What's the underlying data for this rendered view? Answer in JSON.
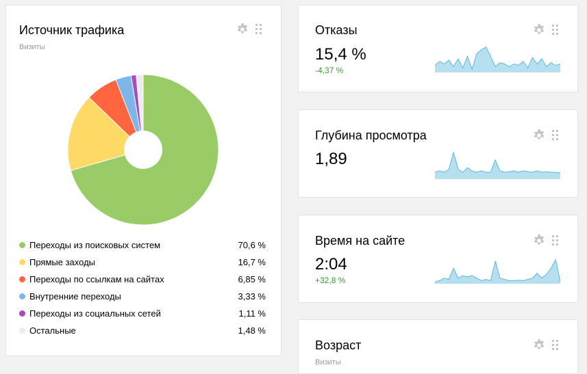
{
  "traffic_card": {
    "title": "Источник трафика",
    "subtitle": "Визиты",
    "settings_icon": "gear-icon",
    "drag_icon": "drag-handle-icon",
    "legend": [
      {
        "label": "Переходы из поисковых систем",
        "value": "70,6 %",
        "color": "#99cc66"
      },
      {
        "label": "Прямые заходы",
        "value": "16,7 %",
        "color": "#ffd966"
      },
      {
        "label": "Переходы по ссылкам на сайтах",
        "value": "6,85 %",
        "color": "#ff6640"
      },
      {
        "label": "Внутренние переходы",
        "value": "3,33 %",
        "color": "#7fb5e8"
      },
      {
        "label": "Переходы из социальных сетей",
        "value": "1,11 %",
        "color": "#a54cc2"
      },
      {
        "label": "Остальные",
        "value": "1,48 %",
        "color": "#ececec"
      }
    ]
  },
  "chart_data": {
    "type": "pie",
    "categories": [
      "Переходы из поисковых систем",
      "Прямые заходы",
      "Переходы по ссылкам на сайтах",
      "Внутренние переходы",
      "Переходы из социальных сетей",
      "Остальные"
    ],
    "values": [
      70.6,
      16.7,
      6.85,
      3.33,
      1.11,
      1.48
    ],
    "colors": [
      "#99cc66",
      "#ffd966",
      "#ff6640",
      "#7fb5e8",
      "#a54cc2",
      "#ececec"
    ],
    "donut_hole": true,
    "legend_placement": "bottom"
  },
  "metrics": {
    "bounce": {
      "title": "Отказы",
      "value": "15,4 %",
      "delta": "-4,37 %",
      "spark": [
        0.25,
        0.4,
        0.3,
        0.45,
        0.2,
        0.5,
        0.15,
        0.6,
        0.1,
        0.7,
        0.85,
        0.95,
        0.6,
        0.2,
        0.35,
        0.3,
        0.2,
        0.3,
        0.25,
        0.4,
        0.15,
        0.55,
        0.3,
        0.5,
        0.2,
        0.35,
        0.25,
        0.3
      ]
    },
    "depth": {
      "title": "Глубина просмотра",
      "value": "1,89",
      "spark": [
        0.2,
        0.25,
        0.2,
        0.3,
        0.85,
        0.3,
        0.2,
        0.35,
        0.25,
        0.2,
        0.25,
        0.2,
        0.2,
        0.6,
        0.25,
        0.2,
        0.22,
        0.25,
        0.2,
        0.25,
        0.22,
        0.2,
        0.25,
        0.2,
        0.22,
        0.2,
        0.2,
        0.18
      ]
    },
    "time": {
      "title": "Время на сайте",
      "value": "2:04",
      "delta": "+32,8 %",
      "spark": [
        0.05,
        0.1,
        0.2,
        0.15,
        0.6,
        0.2,
        0.3,
        0.25,
        0.3,
        0.2,
        0.1,
        0.15,
        0.1,
        0.9,
        0.2,
        0.15,
        0.1,
        0.1,
        0.12,
        0.1,
        0.15,
        0.2,
        0.4,
        0.2,
        0.35,
        0.6,
        0.95,
        0.05
      ]
    },
    "age": {
      "title": "Возраст",
      "subtitle": "Визиты"
    }
  }
}
